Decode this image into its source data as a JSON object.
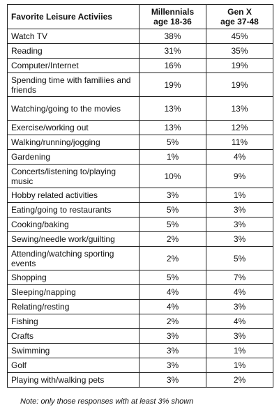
{
  "chart_data": {
    "type": "table",
    "columns": [
      "Favorite Leisure Activiies",
      "Millennials\nage 18-36",
      "Gen X\nage 37-48"
    ],
    "rows": [
      {
        "activity": "Watch TV",
        "millennials": "38%",
        "genx": "45%"
      },
      {
        "activity": "Reading",
        "millennials": "31%",
        "genx": "35%"
      },
      {
        "activity": "Computer/Internet",
        "millennials": "16%",
        "genx": "19%"
      },
      {
        "activity": "Spending time with familiies and friends",
        "millennials": "19%",
        "genx": "19%"
      },
      {
        "activity": "Watching/going to the movies",
        "millennials": "13%",
        "genx": "13%"
      },
      {
        "activity": "Exercise/working out",
        "millennials": "13%",
        "genx": "12%"
      },
      {
        "activity": "Walking/running/jogging",
        "millennials": "5%",
        "genx": "11%"
      },
      {
        "activity": "Gardening",
        "millennials": "1%",
        "genx": "4%"
      },
      {
        "activity": "Concerts/listening to/playing music",
        "millennials": "10%",
        "genx": "9%"
      },
      {
        "activity": "Hobby related activities",
        "millennials": "3%",
        "genx": "1%"
      },
      {
        "activity": "Eating/going to restaurants",
        "millennials": "5%",
        "genx": "3%"
      },
      {
        "activity": "Cooking/baking",
        "millennials": "5%",
        "genx": "3%"
      },
      {
        "activity": "Sewing/needle work/guilting",
        "millennials": "2%",
        "genx": "3%"
      },
      {
        "activity": "Attending/watching sporting events",
        "millennials": "2%",
        "genx": "5%"
      },
      {
        "activity": "Shopping",
        "millennials": "5%",
        "genx": "7%"
      },
      {
        "activity": "Sleeping/napping",
        "millennials": "4%",
        "genx": "4%"
      },
      {
        "activity": "Relating/resting",
        "millennials": "4%",
        "genx": "3%"
      },
      {
        "activity": "Fishing",
        "millennials": "2%",
        "genx": "4%"
      },
      {
        "activity": "Crafts",
        "millennials": "3%",
        "genx": "3%"
      },
      {
        "activity": "Swimming",
        "millennials": "3%",
        "genx": "1%"
      },
      {
        "activity": "Golf",
        "millennials": "3%",
        "genx": "1%"
      },
      {
        "activity": "Playing with/walking pets",
        "millennials": "3%",
        "genx": "2%"
      }
    ],
    "note": "Note: only those responses with at least 3% shown"
  }
}
